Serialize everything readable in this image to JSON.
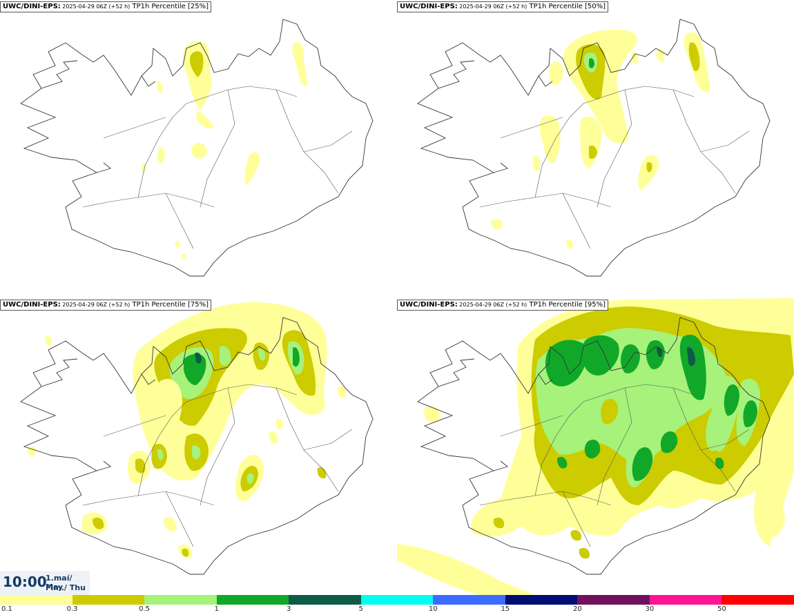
{
  "panels": [
    {
      "model": "UWC/DINI-EPS",
      "sep": ":",
      "run": " 2025-04-29 06Z (+52 h)",
      "param": " TP1h Percentile [25%]"
    },
    {
      "model": "UWC/DINI-EPS",
      "sep": ":",
      "run": " 2025-04-29 06Z (+52 h)",
      "param": " TP1h Percentile [50%]"
    },
    {
      "model": "UWC/DINI-EPS",
      "sep": ":",
      "run": " 2025-04-29 06Z (+52 h)",
      "param": " TP1h Percentile [75%]"
    },
    {
      "model": "UWC/DINI-EPS",
      "sep": ":",
      "run": " 2025-04-29 06Z (+52 h)",
      "param": " TP1h Percentile [95%]"
    }
  ],
  "time": {
    "clock": "10:00",
    "date_line1": "1.maí/ May",
    "date_line2": "Fim./ Thu"
  },
  "legend": {
    "colors": [
      "#ffff99",
      "#cccc00",
      "#a6f27a",
      "#11a82a",
      "#0d5c45",
      "#00ffee",
      "#3c6cff",
      "#000d73",
      "#70115e",
      "#ff1493",
      "#ff0000"
    ],
    "ticks": [
      "0.1",
      "0.3",
      "0.5",
      "1",
      "3",
      "5",
      "10",
      "15",
      "20",
      "30",
      "50"
    ]
  },
  "colors": {
    "land_outline": "#333333",
    "roads": "#555555"
  }
}
